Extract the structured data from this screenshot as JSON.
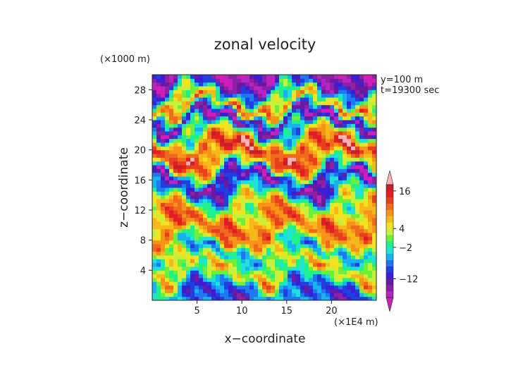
{
  "chart_data": {
    "type": "heatmap",
    "title": "zonal velocity",
    "xlabel": "x−coordinate",
    "ylabel": "z−coordinate",
    "x_unit": "(×1E4 m)",
    "y_unit": "(×1000 m)",
    "annotations": [
      "y=100 m",
      "t=19300 sec"
    ],
    "xlim": [
      0,
      25
    ],
    "ylim": [
      0,
      30
    ],
    "x_ticks": [
      "5",
      "10",
      "15",
      "20"
    ],
    "y_ticks": [
      "4",
      "8",
      "12",
      "16",
      "20",
      "24",
      "28"
    ],
    "colorbar": {
      "levels": [
        -20,
        -18,
        -16,
        -14,
        -12,
        -10,
        -8,
        -6,
        -4,
        -2,
        0,
        2,
        4,
        6,
        8,
        10,
        12,
        14,
        16,
        18,
        20
      ],
      "tick_labels": [
        "16",
        "4",
        "−2",
        "−12"
      ],
      "colors": [
        "#d51cb8",
        "#b625c2",
        "#8f1fa3",
        "#6a1aa0",
        "#3a1fd4",
        "#1f3fe0",
        "#1e78f0",
        "#18b2f0",
        "#1de2d8",
        "#1ef08a",
        "#6ef03a",
        "#c8f03a",
        "#f5e21e",
        "#f7b81a",
        "#f79418",
        "#f06a1c",
        "#e8401e",
        "#e21e24",
        "#c81e2a",
        "#ffb0b0"
      ],
      "extend": "both"
    },
    "grid": false,
    "bands": [
      {
        "z": 1.5,
        "u": -8
      },
      {
        "z": 4.0,
        "u": 6
      },
      {
        "z": 6.5,
        "u": -4
      },
      {
        "z": 9.0,
        "u": 10
      },
      {
        "z": 11.5,
        "u": 8
      },
      {
        "z": 14.0,
        "u": -2
      },
      {
        "z": 16.0,
        "u": -14
      },
      {
        "z": 18.0,
        "u": 6
      },
      {
        "z": 20.0,
        "u": 14
      },
      {
        "z": 22.0,
        "u": 4
      },
      {
        "z": 24.0,
        "u": -16
      },
      {
        "z": 26.0,
        "u": 10
      },
      {
        "z": 28.5,
        "u": -14
      }
    ]
  }
}
